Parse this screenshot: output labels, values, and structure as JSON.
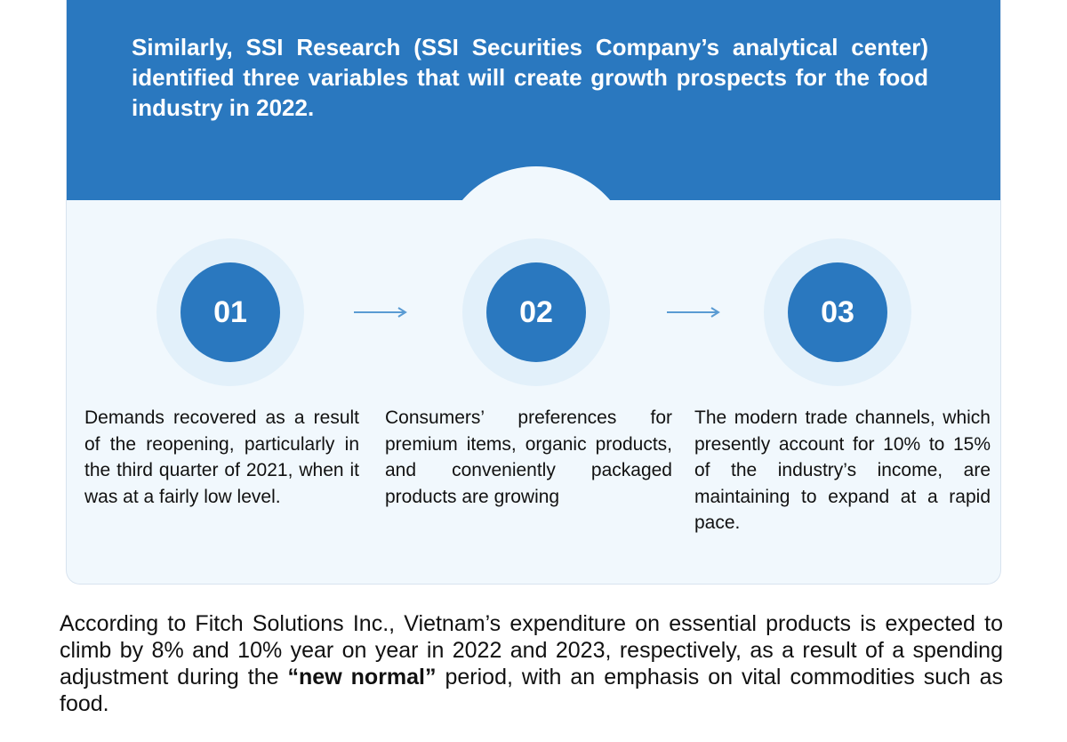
{
  "intro": "Similarly, SSI Research (SSI Securities Company’s analytical center) identified three variables that will create growth prospects for the food industry in 2022.",
  "steps": [
    {
      "number": "01",
      "text": "Demands recovered as a result of the reopening, particularly in the third quarter of 2021, when it was at a fairly low level."
    },
    {
      "number": "02",
      "text": "Consumers’ preferences for premium items, organic products, and conveniently packaged products are growing"
    },
    {
      "number": "03",
      "text": "The modern trade channels, which presently account for 10% to 15% of the industry’s income, are maintaining to expand at a rapid pace."
    }
  ],
  "paragraph": {
    "before": "According to Fitch Solutions Inc., Vietnam’s expenditure on essential products is expected to climb by 8% and 10% year on year in 2022 and 2023, respectively, as a result of a spending adjustment during the ",
    "bold": "“new normal”",
    "after": " period, with an emphasis on vital commodities such as food."
  },
  "colors": {
    "primary": "#2a78bf",
    "panel": "#f1f8fd",
    "ring": "#e2f0fa"
  }
}
